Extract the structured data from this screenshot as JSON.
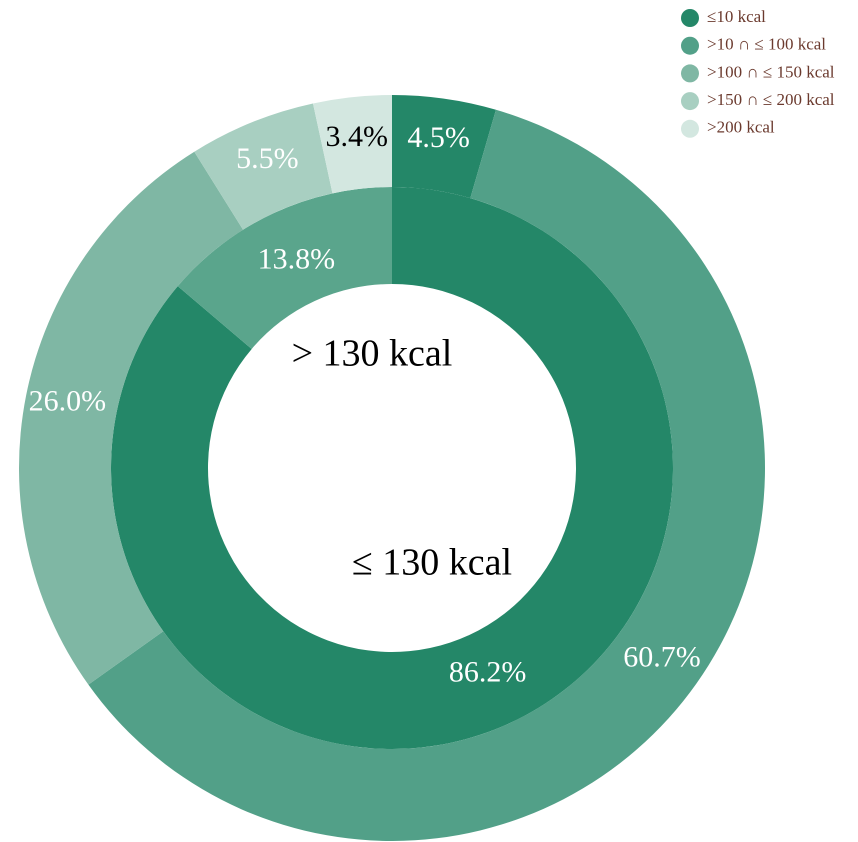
{
  "chart_data": {
    "type": "donut",
    "legend": "upper right",
    "rings": [
      {
        "categories": [
          "≤ 130 kcal",
          "> 130 kcal"
        ],
        "values": [
          86.2,
          13.8
        ],
        "value_labels": [
          "86.2%",
          "13.8%"
        ],
        "colors": [
          "#248768",
          "#5aa58c"
        ]
      },
      {
        "categories": [
          "≤10 kcal",
          ">10 ∩ ≤ 100 kcal",
          ">100 ∩ ≤ 150 kcal",
          ">150 ∩ ≤ 200 kcal",
          ">200 kcal"
        ],
        "values": [
          4.5,
          60.7,
          26.0,
          5.5,
          3.4
        ],
        "value_labels": [
          "4.5%",
          "60.7%",
          "26.0%",
          "5.5%",
          "3.4%"
        ],
        "colors": [
          "#248768",
          "#52a088",
          "#7fb7a4",
          "#a8cfc1",
          "#d3e7e0"
        ]
      }
    ]
  }
}
